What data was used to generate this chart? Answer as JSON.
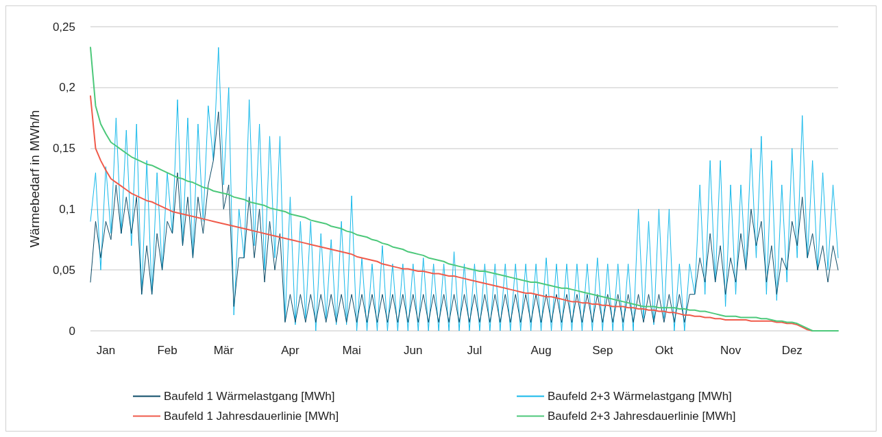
{
  "chart_data": {
    "type": "line",
    "ylabel": "Wärmebedarf in MWh/h",
    "grid": "y",
    "legend": "bottom",
    "marker": "none",
    "categories": [
      null,
      null,
      null,
      "Jan",
      null,
      null,
      null,
      null,
      null,
      null,
      null,
      null,
      null,
      null,
      null,
      "Feb",
      null,
      null,
      null,
      null,
      null,
      null,
      null,
      null,
      null,
      null,
      "Mär",
      null,
      null,
      null,
      null,
      null,
      null,
      null,
      null,
      null,
      null,
      null,
      null,
      "Apr",
      null,
      null,
      null,
      null,
      null,
      null,
      null,
      null,
      null,
      null,
      null,
      "Mai",
      null,
      null,
      null,
      null,
      null,
      null,
      null,
      null,
      null,
      null,
      null,
      "Jun",
      null,
      null,
      null,
      null,
      null,
      null,
      null,
      null,
      null,
      null,
      null,
      "Jul",
      null,
      null,
      null,
      null,
      null,
      null,
      null,
      null,
      null,
      null,
      null,
      null,
      "Aug",
      null,
      null,
      null,
      null,
      null,
      null,
      null,
      null,
      null,
      null,
      null,
      "Sep",
      null,
      null,
      null,
      null,
      null,
      null,
      null,
      null,
      null,
      null,
      null,
      "Okt",
      null,
      null,
      null,
      null,
      null,
      null,
      null,
      null,
      null,
      null,
      null,
      null,
      "Nov",
      null,
      null,
      null,
      null,
      null,
      null,
      null,
      null,
      null,
      null,
      null,
      "Dez",
      null,
      null,
      null,
      null,
      null,
      null,
      null,
      null,
      null
    ],
    "ylim": [
      0,
      0.25
    ],
    "yticks": [
      0,
      {
        "value": 0.05,
        "label": "0,05"
      },
      {
        "value": 0.1,
        "label": "0,1"
      },
      {
        "value": 0.15,
        "label": "0,15"
      },
      {
        "value": 0.2,
        "label": "0,2"
      },
      {
        "value": 0.25,
        "label": "0,25"
      }
    ],
    "series": [
      {
        "name": "Baufeld 1 Wärmelastgang [MWh]",
        "color": "#0b4a66",
        "values": [
          0.04,
          0.09,
          0.06,
          0.09,
          0.075,
          0.12,
          0.08,
          0.11,
          0.08,
          0.11,
          0.03,
          0.07,
          0.03,
          0.08,
          0.05,
          0.09,
          0.08,
          0.13,
          0.07,
          0.11,
          0.06,
          0.11,
          0.08,
          0.12,
          0.14,
          0.18,
          0.1,
          0.12,
          0.02,
          0.06,
          0.06,
          0.11,
          0.06,
          0.1,
          0.04,
          0.09,
          0.05,
          0.08,
          0.007,
          0.03,
          0.007,
          0.03,
          0.007,
          0.03,
          0.007,
          0.03,
          0.007,
          0.03,
          0.007,
          0.03,
          0.007,
          0.03,
          0.007,
          0.03,
          0.007,
          0.03,
          0.007,
          0.03,
          0.007,
          0.03,
          0.007,
          0.03,
          0.007,
          0.03,
          0.007,
          0.03,
          0.007,
          0.03,
          0.007,
          0.03,
          0.007,
          0.03,
          0.007,
          0.03,
          0.007,
          0.03,
          0.007,
          0.03,
          0.007,
          0.03,
          0.007,
          0.03,
          0.007,
          0.03,
          0.007,
          0.03,
          0.007,
          0.03,
          0.007,
          0.03,
          0.007,
          0.03,
          0.007,
          0.03,
          0.007,
          0.03,
          0.007,
          0.03,
          0.007,
          0.03,
          0.007,
          0.03,
          0.007,
          0.03,
          0.007,
          0.03,
          0.007,
          0.03,
          0.007,
          0.03,
          0.007,
          0.03,
          0.007,
          0.03,
          0.007,
          0.03,
          0.007,
          0.03,
          0.03,
          0.06,
          0.04,
          0.08,
          0.04,
          0.07,
          0.03,
          0.06,
          0.04,
          0.08,
          0.05,
          0.1,
          0.07,
          0.09,
          0.04,
          0.07,
          0.03,
          0.06,
          0.05,
          0.09,
          0.07,
          0.11,
          0.06,
          0.08,
          0.05,
          0.07,
          0.04,
          0.07,
          0.05
        ]
      },
      {
        "name": "Baufeld 2+3 Wärmelastgang [MWh]",
        "color": "#14b8ea",
        "values": [
          0.09,
          0.13,
          0.05,
          0.135,
          0.08,
          0.175,
          0.08,
          0.165,
          0.07,
          0.17,
          0.03,
          0.14,
          0.03,
          0.13,
          0.05,
          0.13,
          0.08,
          0.19,
          0.07,
          0.175,
          0.06,
          0.17,
          0.09,
          0.185,
          0.14,
          0.233,
          0.12,
          0.2,
          0.013,
          0.1,
          0.06,
          0.19,
          0.07,
          0.17,
          0.05,
          0.16,
          0.06,
          0.16,
          0.008,
          0.11,
          0.005,
          0.09,
          0.01,
          0.09,
          0,
          0.08,
          0.01,
          0.075,
          0.005,
          0.09,
          0.005,
          0.111,
          0,
          0.06,
          0,
          0.055,
          0,
          0.07,
          0,
          0.055,
          0,
          0.055,
          0,
          0.055,
          0,
          0.06,
          0,
          0.055,
          0,
          0.055,
          0,
          0.065,
          0,
          0.055,
          0,
          0.055,
          0,
          0.055,
          0,
          0.055,
          0,
          0.055,
          0,
          0.055,
          0,
          0.055,
          0,
          0.055,
          0,
          0.06,
          0,
          0.055,
          0,
          0.055,
          0,
          0.055,
          0,
          0.055,
          0,
          0.06,
          0,
          0.055,
          0,
          0.055,
          0,
          0.055,
          0,
          0.1,
          0.01,
          0.09,
          0.005,
          0.1,
          0.01,
          0.1,
          0,
          0.055,
          0,
          0.055,
          0.03,
          0.12,
          0.03,
          0.14,
          0.04,
          0.14,
          0.02,
          0.12,
          0.03,
          0.12,
          0.05,
          0.15,
          0.06,
          0.16,
          0.03,
          0.14,
          0.025,
          0.12,
          0.04,
          0.15,
          0.06,
          0.177,
          0.06,
          0.14,
          0.05,
          0.13,
          0.05,
          0.12,
          0.06
        ]
      },
      {
        "name": "Baufeld 1 Jahresdauerlinie [MWh]",
        "color": "#f05a4a",
        "values": [
          0.193,
          0.15,
          0.14,
          0.132,
          0.125,
          0.122,
          0.119,
          0.116,
          0.113,
          0.111,
          0.109,
          0.107,
          0.106,
          0.104,
          0.102,
          0.1,
          0.098,
          0.097,
          0.096,
          0.095,
          0.094,
          0.093,
          0.092,
          0.091,
          0.09,
          0.089,
          0.088,
          0.087,
          0.086,
          0.085,
          0.084,
          0.083,
          0.082,
          0.081,
          0.08,
          0.079,
          0.078,
          0.077,
          0.076,
          0.075,
          0.074,
          0.073,
          0.072,
          0.071,
          0.07,
          0.069,
          0.068,
          0.067,
          0.066,
          0.065,
          0.064,
          0.063,
          0.061,
          0.06,
          0.059,
          0.058,
          0.057,
          0.055,
          0.054,
          0.053,
          0.052,
          0.051,
          0.051,
          0.05,
          0.049,
          0.049,
          0.048,
          0.047,
          0.047,
          0.046,
          0.045,
          0.045,
          0.044,
          0.043,
          0.042,
          0.041,
          0.04,
          0.039,
          0.038,
          0.037,
          0.036,
          0.035,
          0.034,
          0.033,
          0.032,
          0.031,
          0.031,
          0.03,
          0.029,
          0.028,
          0.028,
          0.027,
          0.026,
          0.025,
          0.024,
          0.024,
          0.023,
          0.023,
          0.022,
          0.022,
          0.021,
          0.021,
          0.02,
          0.02,
          0.02,
          0.019,
          0.019,
          0.018,
          0.018,
          0.017,
          0.017,
          0.016,
          0.016,
          0.015,
          0.015,
          0.014,
          0.013,
          0.013,
          0.012,
          0.012,
          0.011,
          0.011,
          0.01,
          0.01,
          0.009,
          0.009,
          0.009,
          0.009,
          0.009,
          0.008,
          0.008,
          0.008,
          0.008,
          0.008,
          0.007,
          0.007,
          0.006,
          0.006,
          0.005,
          0.003,
          0.001,
          0,
          0,
          null,
          null,
          null,
          null
        ]
      },
      {
        "name": "Baufeld 2+3 Jahresdauerlinie [MWh]",
        "color": "#4cc87a",
        "values": [
          0.233,
          0.185,
          0.17,
          0.162,
          0.155,
          0.152,
          0.149,
          0.146,
          0.143,
          0.141,
          0.139,
          0.137,
          0.136,
          0.134,
          0.132,
          0.13,
          0.128,
          0.126,
          0.125,
          0.123,
          0.122,
          0.12,
          0.118,
          0.117,
          0.115,
          0.114,
          0.113,
          0.112,
          0.11,
          0.109,
          0.108,
          0.106,
          0.105,
          0.104,
          0.103,
          0.101,
          0.1,
          0.099,
          0.098,
          0.096,
          0.095,
          0.094,
          0.093,
          0.091,
          0.09,
          0.089,
          0.088,
          0.086,
          0.085,
          0.084,
          0.082,
          0.081,
          0.079,
          0.078,
          0.077,
          0.075,
          0.074,
          0.072,
          0.071,
          0.069,
          0.068,
          0.067,
          0.065,
          0.064,
          0.063,
          0.062,
          0.06,
          0.059,
          0.058,
          0.057,
          0.055,
          0.054,
          0.053,
          0.052,
          0.051,
          0.05,
          0.049,
          0.049,
          0.048,
          0.047,
          0.046,
          0.045,
          0.044,
          0.043,
          0.042,
          0.041,
          0.04,
          0.04,
          0.039,
          0.038,
          0.037,
          0.036,
          0.035,
          0.035,
          0.034,
          0.033,
          0.032,
          0.031,
          0.03,
          0.029,
          0.028,
          0.027,
          0.026,
          0.025,
          0.024,
          0.023,
          0.022,
          0.021,
          0.02,
          0.02,
          0.02,
          0.019,
          0.019,
          0.019,
          0.019,
          0.018,
          0.018,
          0.017,
          0.017,
          0.016,
          0.016,
          0.015,
          0.014,
          0.013,
          0.012,
          0.012,
          0.012,
          0.011,
          0.011,
          0.011,
          0.011,
          0.01,
          0.01,
          0.009,
          0.008,
          0.008,
          0.007,
          0.007,
          0.006,
          0.004,
          0.002,
          0,
          0,
          0,
          0,
          0,
          0
        ]
      }
    ]
  }
}
